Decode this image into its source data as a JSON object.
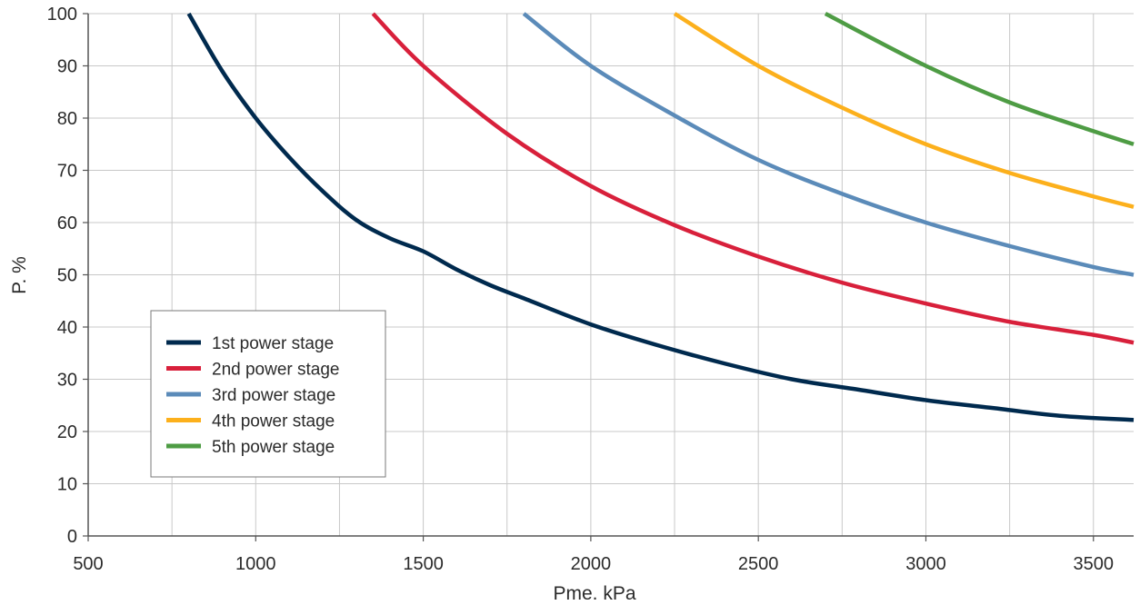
{
  "chart_data": {
    "type": "line",
    "title": "",
    "xlabel": "Pme. kPa",
    "ylabel": "P. %",
    "xlim": [
      500,
      3620
    ],
    "ylim": [
      0,
      100
    ],
    "x_ticks": [
      500,
      1000,
      1500,
      2000,
      2500,
      3000,
      3500
    ],
    "y_ticks": [
      0,
      10,
      20,
      30,
      40,
      50,
      60,
      70,
      80,
      90,
      100
    ],
    "x_tick_labels": [
      "500",
      "1000",
      "1500",
      "2000",
      "2500",
      "3000",
      "3500"
    ],
    "y_tick_labels": [
      "0",
      "10",
      "20",
      "30",
      "40",
      "50",
      "60",
      "70",
      "80",
      "90",
      "100"
    ],
    "grid": true,
    "legend_position": "bottom-left",
    "series": [
      {
        "name": "1st power stage",
        "color": "#002a4e",
        "x": [
          800,
          900,
          1000,
          1100,
          1200,
          1300,
          1400,
          1500,
          1600,
          1700,
          1800,
          2000,
          2200,
          2400,
          2600,
          2800,
          3000,
          3200,
          3400,
          3620
        ],
        "y": [
          100,
          89,
          80,
          72.5,
          66,
          60.5,
          57,
          54.5,
          51,
          48,
          45.5,
          40.5,
          36.5,
          33,
          30,
          28,
          26,
          24.5,
          23,
          22.2
        ]
      },
      {
        "name": "2nd power stage",
        "color": "#d8203b",
        "x": [
          1350,
          1500,
          1750,
          2000,
          2250,
          2500,
          2750,
          3000,
          3250,
          3500,
          3620
        ],
        "y": [
          100,
          90,
          77,
          67,
          59.5,
          53.5,
          48.5,
          44.5,
          41,
          38.5,
          37
        ]
      },
      {
        "name": "3rd power stage",
        "color": "#5b8bb9",
        "x": [
          1800,
          2000,
          2250,
          2500,
          2750,
          3000,
          3250,
          3500,
          3620
        ],
        "y": [
          100,
          90,
          80.5,
          72,
          65.5,
          60,
          55.5,
          51.5,
          50
        ]
      },
      {
        "name": "4th power stage",
        "color": "#fcb01c",
        "x": [
          2250,
          2500,
          2750,
          3000,
          3250,
          3500,
          3620
        ],
        "y": [
          100,
          90,
          82,
          75,
          69.5,
          65,
          63
        ]
      },
      {
        "name": "5th power stage",
        "color": "#4e9c44",
        "x": [
          2700,
          3000,
          3250,
          3500,
          3620
        ],
        "y": [
          100,
          90,
          83,
          77.5,
          75
        ]
      }
    ]
  }
}
